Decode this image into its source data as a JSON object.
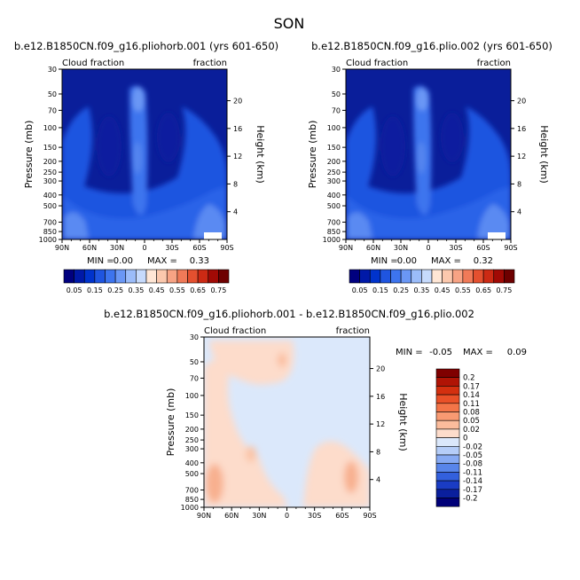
{
  "page_title": "SON",
  "chart_data": [
    {
      "type": "heatmap",
      "title": "b.e12.B1850CN.f09_g16.pliohorb.001 (yrs 601-650)",
      "left_label": "Cloud fraction",
      "right_label": "fraction",
      "ylabel": "Pressure (mb)",
      "y2label": "Height (km)",
      "xticks": [
        "90N",
        "60N",
        "30N",
        "0",
        "30S",
        "60S",
        "90S"
      ],
      "yticks": [
        "30",
        "50",
        "70",
        "100",
        "150",
        "200",
        "250",
        "300",
        "400",
        "500",
        "700",
        "850",
        "1000"
      ],
      "y2ticks": [
        "20",
        "16",
        "12",
        "8",
        "4"
      ],
      "min_label": "MIN =",
      "min_value": "0.00",
      "max_label": "MAX =",
      "max_value": "0.33",
      "value_range": [
        0,
        0.33
      ]
    },
    {
      "type": "heatmap",
      "title": "b.e12.B1850CN.f09_g16.plio.002 (yrs 601-650)",
      "left_label": "Cloud fraction",
      "right_label": "fraction",
      "ylabel": "Pressure (mb)",
      "y2label": "Height (km)",
      "xticks": [
        "90N",
        "60N",
        "30N",
        "0",
        "30S",
        "60S",
        "90S"
      ],
      "yticks": [
        "30",
        "50",
        "70",
        "100",
        "150",
        "200",
        "250",
        "300",
        "400",
        "500",
        "700",
        "850",
        "1000"
      ],
      "y2ticks": [
        "20",
        "16",
        "12",
        "8",
        "4"
      ],
      "min_label": "MIN =",
      "min_value": "0.00",
      "max_label": "MAX =",
      "max_value": "0.32",
      "value_range": [
        0,
        0.32
      ]
    },
    {
      "type": "heatmap",
      "title": "b.e12.B1850CN.f09_g16.pliohorb.001 - b.e12.B1850CN.f09_g16.plio.002",
      "left_label": "Cloud fraction",
      "right_label": "fraction",
      "ylabel": "Pressure (mb)",
      "y2label": "Height (km)",
      "xticks": [
        "90N",
        "60N",
        "30N",
        "0",
        "30S",
        "60S",
        "90S"
      ],
      "yticks": [
        "30",
        "50",
        "70",
        "100",
        "150",
        "200",
        "250",
        "300",
        "400",
        "500",
        "700",
        "850",
        "1000"
      ],
      "y2ticks": [
        "20",
        "16",
        "12",
        "8",
        "4"
      ],
      "min_label": "MIN =",
      "min_value": "-0.05",
      "max_label": "MAX =",
      "max_value": "0.09",
      "value_range": [
        -0.05,
        0.09
      ]
    }
  ],
  "colorbar_top": {
    "labels": [
      "0.05",
      "0.15",
      "0.25",
      "0.35",
      "0.45",
      "0.55",
      "0.65",
      "0.75"
    ],
    "colors": [
      "#00007f",
      "#0019a8",
      "#0033cc",
      "#1f55e0",
      "#3d74ee",
      "#6a97f5",
      "#9bbcf9",
      "#c6dafc",
      "#ffe6d5",
      "#fbc8ad",
      "#f7a384",
      "#f07a58",
      "#e4502f",
      "#cc2a14",
      "#a10a05",
      "#6e0000"
    ]
  },
  "colorbar_diff": {
    "labels": [
      "0.2",
      "0.17",
      "0.14",
      "0.11",
      "0.08",
      "0.05",
      "0.02",
      "0",
      "-0.02",
      "-0.05",
      "-0.08",
      "-0.11",
      "-0.14",
      "-0.17",
      "-0.2"
    ],
    "colors": [
      "#7f0000",
      "#b01405",
      "#d4300f",
      "#ea5128",
      "#f47548",
      "#f89a72",
      "#fbbc9c",
      "#fddccb",
      "#dbe8fb",
      "#b5cdf8",
      "#87aaf3",
      "#5885ea",
      "#3360dd",
      "#1a3cc4",
      "#0a1f9d",
      "#000078"
    ]
  }
}
